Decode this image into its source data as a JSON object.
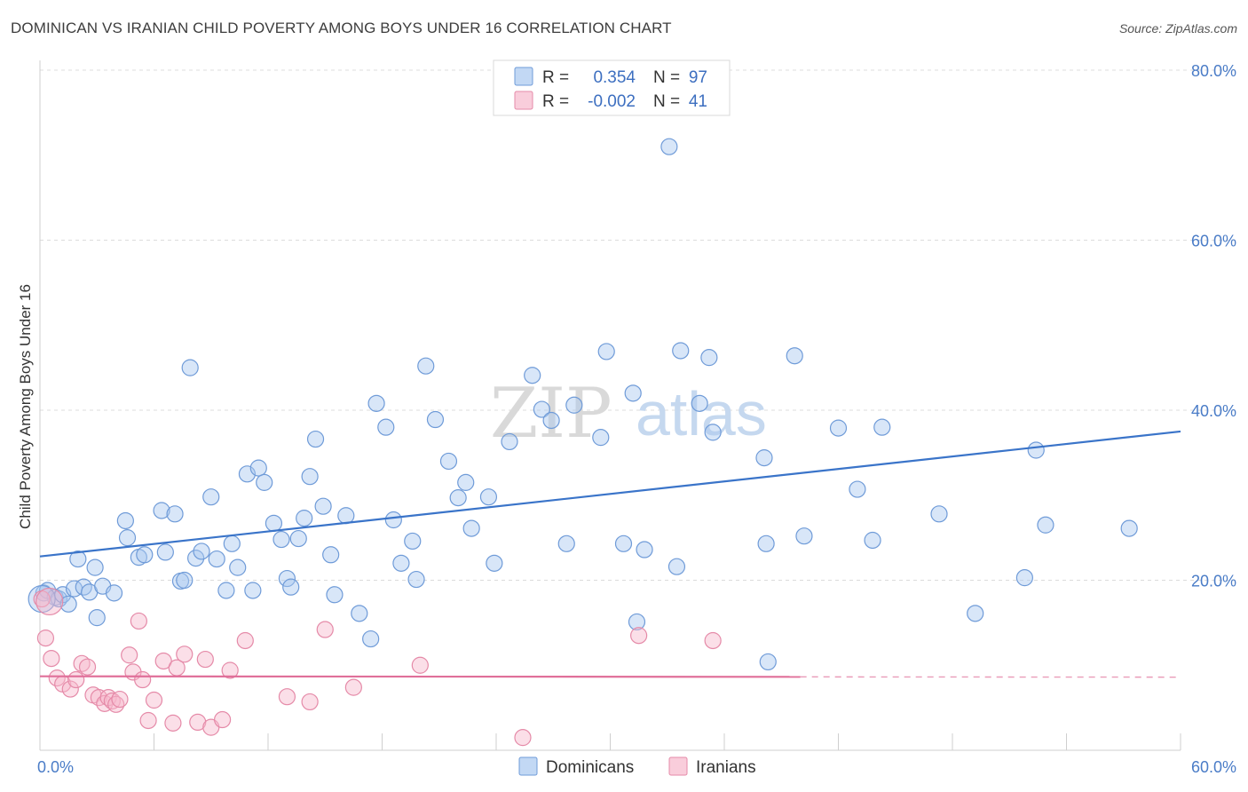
{
  "header": {
    "title": "DOMINICAN VS IRANIAN CHILD POVERTY AMONG BOYS UNDER 16 CORRELATION CHART",
    "source": "Source: ZipAtlas.com"
  },
  "watermark": {
    "zip": "ZIP",
    "atlas": "atlas"
  },
  "legend": {
    "rows": [
      {
        "r_label": "R =",
        "r_value": "0.354",
        "n_label": "N =",
        "n_value": "97",
        "color": "#a8c8f0",
        "edge": "#6f9bd8"
      },
      {
        "r_label": "R =",
        "r_value": "-0.002",
        "n_label": "N =",
        "n_value": "41",
        "color": "#f7b8cc",
        "edge": "#e58aa8"
      }
    ]
  },
  "bottom_legend": {
    "items": [
      {
        "label": "Dominicans",
        "color": "#a8c8f0",
        "edge": "#6f9bd8"
      },
      {
        "label": "Iranians",
        "color": "#f7b8cc",
        "edge": "#e58aa8"
      }
    ]
  },
  "chart_data": {
    "type": "scatter",
    "ylabel": "Child Poverty Among Boys Under 16",
    "xlim": [
      0,
      60
    ],
    "ylim": [
      0,
      80
    ],
    "x_tick_labels": [
      {
        "value": 0,
        "label": "0.0%"
      },
      {
        "value": 60,
        "label": "60.0%"
      }
    ],
    "y_tick_labels": [
      {
        "value": 20,
        "label": "20.0%"
      },
      {
        "value": 40,
        "label": "40.0%"
      },
      {
        "value": 60,
        "label": "60.0%"
      },
      {
        "value": 80,
        "label": "80.0%"
      }
    ],
    "grid": "horizontal-dashed",
    "series": [
      {
        "name": "Dominicans",
        "color": "#a8c8f0",
        "edge": "#6f9bd8",
        "trend": {
          "x": [
            0,
            60
          ],
          "y": [
            22.8,
            37.5
          ],
          "color": "#3a74c9",
          "dashed_from": null
        },
        "points": [
          [
            0.2,
            18.5
          ],
          [
            0.4,
            18.8
          ],
          [
            0.8,
            18.0
          ],
          [
            1.0,
            17.8
          ],
          [
            1.2,
            18.3
          ],
          [
            1.5,
            17.2
          ],
          [
            1.8,
            19.0
          ],
          [
            2.0,
            22.5
          ],
          [
            2.3,
            19.2
          ],
          [
            2.6,
            18.6
          ],
          [
            2.9,
            21.5
          ],
          [
            3.3,
            19.3
          ],
          [
            3.9,
            18.5
          ],
          [
            4.5,
            27.0
          ],
          [
            4.6,
            25.0
          ],
          [
            5.2,
            22.7
          ],
          [
            5.5,
            23.0
          ],
          [
            6.4,
            28.2
          ],
          [
            6.6,
            23.3
          ],
          [
            7.1,
            27.8
          ],
          [
            7.4,
            19.9
          ],
          [
            7.6,
            20.0
          ],
          [
            7.9,
            45.0
          ],
          [
            8.2,
            22.6
          ],
          [
            8.5,
            23.4
          ],
          [
            9.0,
            29.8
          ],
          [
            9.3,
            22.5
          ],
          [
            9.8,
            18.8
          ],
          [
            10.1,
            24.3
          ],
          [
            10.4,
            21.5
          ],
          [
            10.9,
            32.5
          ],
          [
            11.2,
            18.8
          ],
          [
            11.5,
            33.2
          ],
          [
            11.8,
            31.5
          ],
          [
            12.3,
            26.7
          ],
          [
            12.7,
            24.8
          ],
          [
            13.0,
            20.2
          ],
          [
            13.2,
            19.2
          ],
          [
            13.6,
            24.9
          ],
          [
            13.9,
            27.3
          ],
          [
            14.2,
            32.2
          ],
          [
            14.5,
            36.6
          ],
          [
            14.9,
            28.7
          ],
          [
            15.3,
            23.0
          ],
          [
            15.5,
            18.3
          ],
          [
            16.1,
            27.6
          ],
          [
            16.8,
            16.1
          ],
          [
            17.4,
            13.1
          ],
          [
            17.7,
            40.8
          ],
          [
            18.2,
            38.0
          ],
          [
            18.6,
            27.1
          ],
          [
            19.0,
            22.0
          ],
          [
            19.6,
            24.6
          ],
          [
            19.8,
            20.1
          ],
          [
            20.3,
            45.2
          ],
          [
            20.8,
            38.9
          ],
          [
            21.5,
            34.0
          ],
          [
            22.0,
            29.7
          ],
          [
            22.4,
            31.5
          ],
          [
            22.7,
            26.1
          ],
          [
            23.6,
            29.8
          ],
          [
            23.9,
            22.0
          ],
          [
            24.7,
            36.3
          ],
          [
            25.9,
            44.1
          ],
          [
            26.4,
            40.1
          ],
          [
            26.9,
            38.8
          ],
          [
            27.7,
            24.3
          ],
          [
            28.1,
            40.6
          ],
          [
            29.5,
            36.8
          ],
          [
            29.8,
            46.9
          ],
          [
            30.7,
            24.3
          ],
          [
            31.2,
            42.0
          ],
          [
            31.4,
            15.1
          ],
          [
            31.8,
            23.6
          ],
          [
            33.1,
            71.0
          ],
          [
            33.5,
            21.6
          ],
          [
            33.7,
            47.0
          ],
          [
            34.7,
            40.8
          ],
          [
            35.2,
            46.2
          ],
          [
            35.4,
            37.4
          ],
          [
            38.1,
            34.4
          ],
          [
            38.2,
            24.3
          ],
          [
            38.3,
            10.4
          ],
          [
            39.7,
            46.4
          ],
          [
            40.2,
            25.2
          ],
          [
            42.0,
            37.9
          ],
          [
            43.0,
            30.7
          ],
          [
            43.8,
            24.7
          ],
          [
            44.3,
            38.0
          ],
          [
            47.3,
            27.8
          ],
          [
            49.2,
            16.1
          ],
          [
            51.8,
            20.3
          ],
          [
            52.4,
            35.3
          ],
          [
            52.9,
            26.5
          ],
          [
            57.3,
            26.1
          ],
          [
            3.0,
            15.6
          ],
          [
            0.1,
            17.8
          ]
        ]
      },
      {
        "name": "Iranians",
        "color": "#f7b8cc",
        "edge": "#e58aa8",
        "trend": {
          "x": [
            0,
            60
          ],
          "y": [
            8.7,
            8.6
          ],
          "color": "#e0709a",
          "dashed_from": 40
        },
        "points": [
          [
            0.1,
            17.8
          ],
          [
            0.3,
            13.2
          ],
          [
            0.6,
            10.8
          ],
          [
            0.9,
            8.5
          ],
          [
            1.2,
            7.8
          ],
          [
            1.6,
            7.2
          ],
          [
            1.9,
            8.3
          ],
          [
            2.2,
            10.2
          ],
          [
            2.5,
            9.8
          ],
          [
            2.8,
            6.5
          ],
          [
            3.1,
            6.2
          ],
          [
            3.4,
            5.5
          ],
          [
            3.6,
            6.2
          ],
          [
            3.8,
            5.8
          ],
          [
            4.0,
            5.4
          ],
          [
            4.2,
            6.0
          ],
          [
            4.7,
            11.2
          ],
          [
            4.9,
            9.2
          ],
          [
            5.2,
            15.2
          ],
          [
            5.4,
            8.3
          ],
          [
            5.7,
            3.5
          ],
          [
            6.0,
            5.9
          ],
          [
            6.5,
            10.5
          ],
          [
            7.0,
            3.2
          ],
          [
            7.2,
            9.7
          ],
          [
            7.6,
            11.3
          ],
          [
            8.3,
            3.3
          ],
          [
            8.7,
            10.7
          ],
          [
            9.0,
            2.7
          ],
          [
            9.6,
            3.6
          ],
          [
            10.0,
            9.4
          ],
          [
            10.8,
            12.9
          ],
          [
            13.0,
            6.3
          ],
          [
            14.2,
            5.7
          ],
          [
            15.0,
            14.2
          ],
          [
            16.5,
            7.4
          ],
          [
            20.0,
            10.0
          ],
          [
            25.4,
            1.5
          ],
          [
            31.5,
            13.5
          ],
          [
            35.4,
            12.9
          ],
          [
            0.5,
            17.5
          ]
        ]
      }
    ]
  }
}
